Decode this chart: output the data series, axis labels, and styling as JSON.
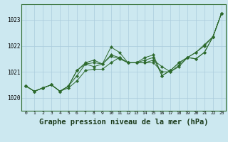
{
  "background_color": "#cce8f0",
  "grid_color": "#aaccdd",
  "line_color": "#2d6a2d",
  "marker_color": "#2d6a2d",
  "xlabel": "Graphe pression niveau de la mer (hPa)",
  "xlabel_fontsize": 7.5,
  "xlim": [
    -0.5,
    23.5
  ],
  "ylim": [
    1019.5,
    1023.6
  ],
  "yticks": [
    1020,
    1021,
    1022,
    1023
  ],
  "xticks": [
    0,
    1,
    2,
    3,
    4,
    5,
    6,
    7,
    8,
    9,
    10,
    11,
    12,
    13,
    14,
    15,
    16,
    17,
    18,
    19,
    20,
    21,
    22,
    23
  ],
  "series": [
    [
      1020.45,
      1020.25,
      1020.38,
      1020.5,
      1020.25,
      1020.38,
      1020.65,
      1021.05,
      1021.1,
      1021.1,
      1021.35,
      1021.55,
      1021.35,
      1021.35,
      1021.35,
      1021.35,
      1021.0,
      1021.0,
      1021.2,
      1021.55,
      1021.75,
      1022.0,
      1022.35,
      1023.25
    ],
    [
      1020.45,
      1020.25,
      1020.38,
      1020.5,
      1020.25,
      1020.45,
      1020.85,
      1021.3,
      1021.2,
      1021.3,
      1021.6,
      1021.5,
      1021.35,
      1021.35,
      1021.35,
      1021.45,
      1021.2,
      1021.0,
      1021.25,
      1021.55,
      1021.75,
      1022.05,
      1022.35,
      1023.25
    ],
    [
      1020.45,
      1020.25,
      1020.38,
      1020.5,
      1020.25,
      1020.45,
      1021.05,
      1021.3,
      1021.35,
      1021.3,
      1021.65,
      1021.55,
      1021.35,
      1021.35,
      1021.45,
      1021.55,
      1020.85,
      1021.05,
      1021.35,
      1021.55,
      1021.5,
      1021.75,
      1022.35,
      1023.25
    ],
    [
      1020.45,
      1020.25,
      1020.38,
      1020.5,
      1020.25,
      1020.45,
      1021.05,
      1021.35,
      1021.45,
      1021.3,
      1021.95,
      1021.75,
      1021.35,
      1021.35,
      1021.55,
      1021.65,
      1020.85,
      1021.05,
      1021.35,
      1021.55,
      1021.5,
      1021.75,
      1022.35,
      1023.25
    ]
  ]
}
